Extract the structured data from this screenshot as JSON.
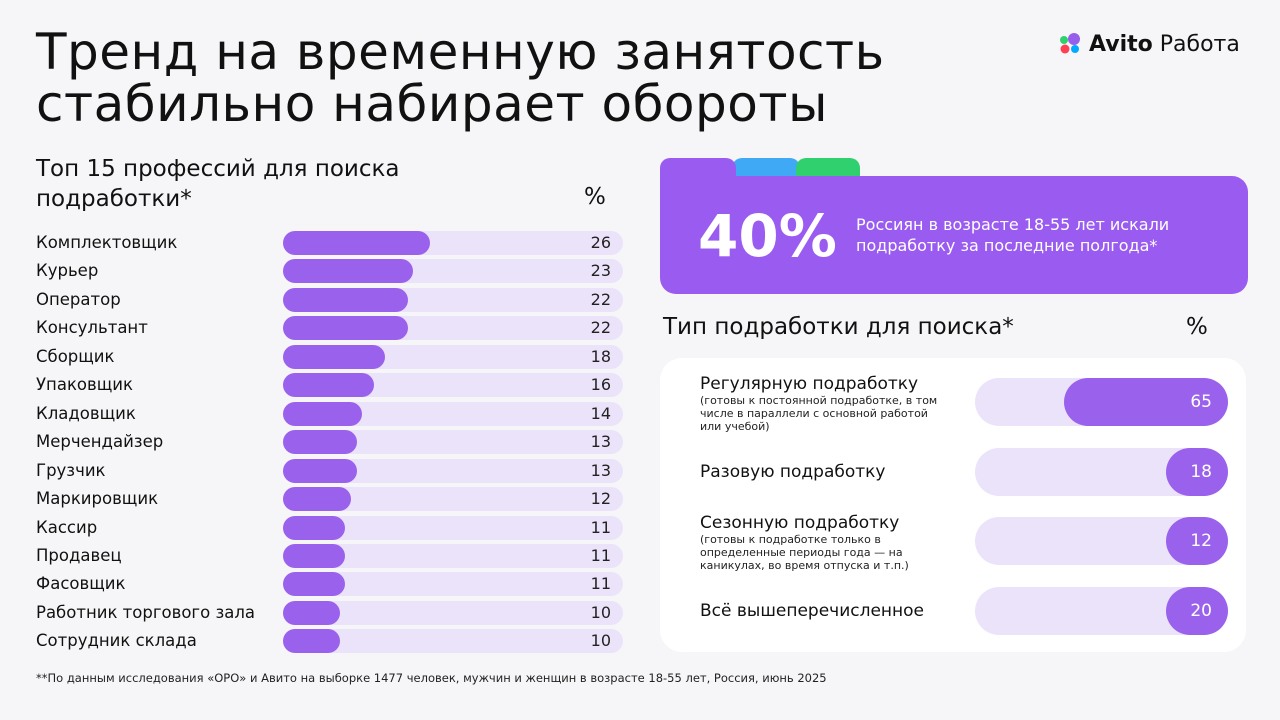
{
  "header": {
    "title": "Тренд на временную занятость стабильно набирает обороты",
    "logo": {
      "brand": "Avito",
      "product": "Работа"
    }
  },
  "callout": {
    "value": "40%",
    "text": "Россиян в возрасте 18-55 лет искали подработку за последние полгода*"
  },
  "chart_data": [
    {
      "type": "bar",
      "title": "Топ 15 профессий для поиска подработки*",
      "value_header": "%",
      "categories": [
        "Комплектовщик",
        "Курьер",
        "Оператор",
        "Консультант",
        "Сборщик",
        "Упаковщик",
        "Кладовщик",
        "Мерчендайзер",
        "Грузчик",
        "Маркировщик",
        "Кассир",
        "Продавец",
        "Фасовщик",
        "Работник торгового зала",
        "Сотрудник склада"
      ],
      "values": [
        26,
        23,
        22,
        22,
        18,
        16,
        14,
        13,
        13,
        12,
        11,
        11,
        11,
        10,
        10
      ],
      "color": "#9a62ec",
      "track_color": "#ebe3fa",
      "xlim": [
        0,
        60
      ],
      "bar_anchor": "left"
    },
    {
      "type": "bar",
      "title": "Тип подработки для поиска*",
      "value_header": "%",
      "categories": [
        "Регулярную подработку",
        "Разовую подработку",
        "Сезонную подработку",
        "Всё вышеперечисленное"
      ],
      "notes": [
        "(готовы к постоянной подработке, в том числе в параллели с основной работой или учебой)",
        null,
        "(готовы к подработке только в определенные периоды года — на каникулах, во время отпуска и т.п.)",
        null
      ],
      "values": [
        65,
        18,
        12,
        20
      ],
      "color": "#9a62ec",
      "track_color": "#ebe3fa",
      "xlim": [
        0,
        100
      ],
      "bar_anchor": "right"
    }
  ],
  "footnote": "**По данным исследования «ОРО» и Авито на выборке 1477 человек, мужчин и женщин в возрасте 18-55 лет, Россия, июнь 2025"
}
